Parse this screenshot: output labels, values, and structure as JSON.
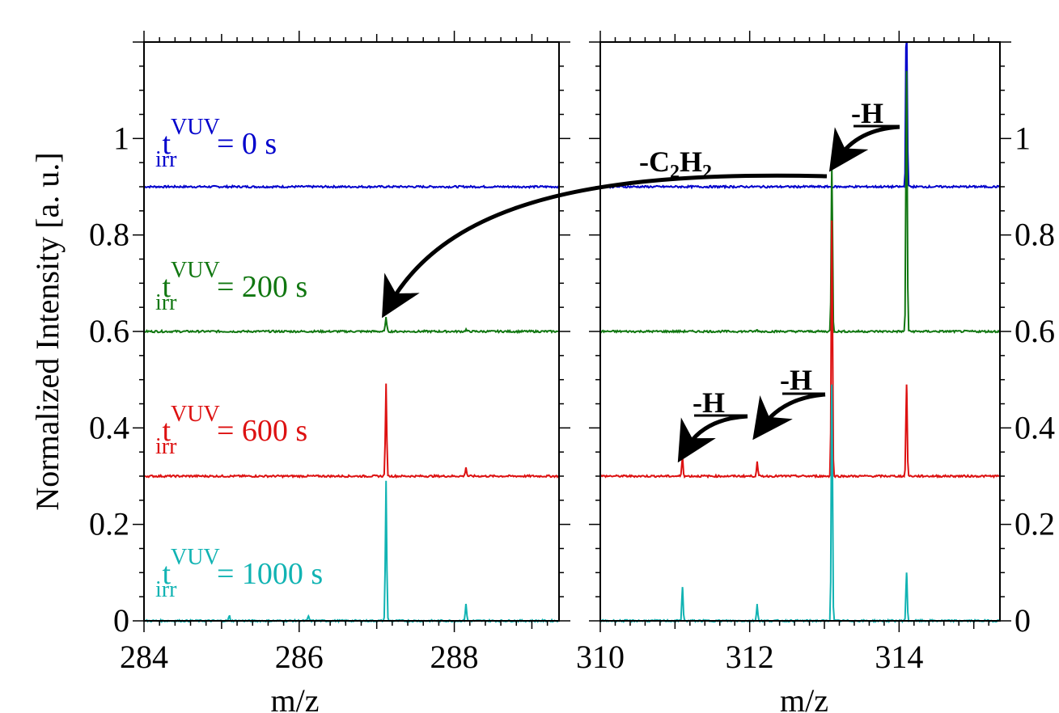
{
  "chart_data": {
    "type": "line",
    "ylabel": "Normalized Intensity [a. u.]",
    "ylim": [
      0,
      1.2
    ],
    "y_ticks": [
      0,
      0.2,
      0.4,
      0.6,
      0.8,
      1
    ],
    "y_tick_labels": [
      "0",
      "0.2",
      "0.4",
      "0.6",
      "0.8",
      "1"
    ],
    "right_tick_labels": [
      "0",
      "0.2",
      "0.4",
      "0.6",
      "0.8",
      "1"
    ],
    "grid": false,
    "panels": [
      {
        "name": "left",
        "xlabel": "m/z",
        "xlim": [
          284,
          289.35
        ],
        "x_ticks": [
          284,
          286,
          288
        ],
        "x_tick_labels": [
          "284",
          "286",
          "288"
        ]
      },
      {
        "name": "right",
        "xlabel": "m/z",
        "xlim": [
          310,
          315.35
        ],
        "x_ticks": [
          310,
          312,
          314
        ],
        "x_tick_labels": [
          "310",
          "312",
          "314"
        ]
      }
    ],
    "series": [
      {
        "name": "0 s",
        "color": "#0000cc",
        "baseline": 0.9,
        "label": {
          "t": "t",
          "sup": "VUV",
          "sub": "irr",
          "value": "= 0 s"
        },
        "peaks": [
          {
            "mz": 314.1,
            "height": 0.45
          }
        ]
      },
      {
        "name": "200 s",
        "color": "#117711",
        "baseline": 0.6,
        "label": {
          "t": "t",
          "sup": "VUV",
          "sub": "irr",
          "value": "= 200 s"
        },
        "peaks": [
          {
            "mz": 287.12,
            "height": 0.03
          },
          {
            "mz": 288.15,
            "height": 0.004
          },
          {
            "mz": 312.1,
            "height": 0.004
          },
          {
            "mz": 313.1,
            "height": 0.34
          },
          {
            "mz": 314.1,
            "height": 0.54
          }
        ]
      },
      {
        "name": "600 s",
        "color": "#dd1111",
        "baseline": 0.3,
        "label": {
          "t": "t",
          "sup": "VUV",
          "sub": "irr",
          "value": "= 600 s"
        },
        "peaks": [
          {
            "mz": 287.12,
            "height": 0.19
          },
          {
            "mz": 288.15,
            "height": 0.018
          },
          {
            "mz": 311.1,
            "height": 0.04
          },
          {
            "mz": 312.1,
            "height": 0.03
          },
          {
            "mz": 313.1,
            "height": 0.53
          },
          {
            "mz": 314.1,
            "height": 0.19
          }
        ]
      },
      {
        "name": "1000 s",
        "color": "#11b3b3",
        "baseline": 0.0,
        "label": {
          "t": "t",
          "sup": "VUV",
          "sub": "irr",
          "value": "= 1000 s"
        },
        "peaks": [
          {
            "mz": 285.1,
            "height": 0.01
          },
          {
            "mz": 286.12,
            "height": 0.01
          },
          {
            "mz": 287.12,
            "height": 0.29
          },
          {
            "mz": 288.15,
            "height": 0.035
          },
          {
            "mz": 311.1,
            "height": 0.07
          },
          {
            "mz": 312.1,
            "height": 0.035
          },
          {
            "mz": 313.1,
            "height": 0.49
          },
          {
            "mz": 314.1,
            "height": 0.1
          }
        ]
      }
    ],
    "annotations": [
      {
        "name": "minus-h-top",
        "text": "-H"
      },
      {
        "name": "minus-c2h2",
        "text_main": "-C",
        "text_sub1": "2",
        "text_mid": "H",
        "text_sub2": "2"
      },
      {
        "name": "minus-h-mid",
        "text": "-H"
      },
      {
        "name": "minus-h-low",
        "text": "-H"
      }
    ]
  }
}
